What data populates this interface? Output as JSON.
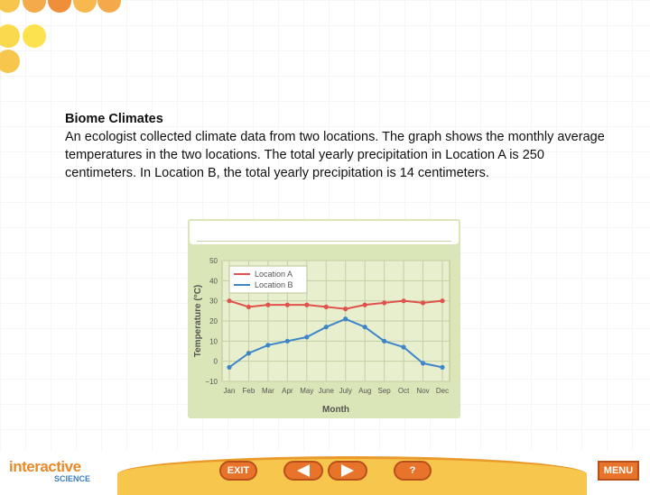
{
  "slide": {
    "title": "Biome Climates",
    "paragraph": "An ecologist collected climate data from two locations. The graph shows the monthly average temperatures in the two locations. The total yearly precipitation in Location A is 250 centimeters. In Location B, the total yearly precipitation is 14 centimeters."
  },
  "chart_data": {
    "type": "line",
    "x": [
      "Jan",
      "Feb",
      "Mar",
      "Apr",
      "May",
      "June",
      "July",
      "Aug",
      "Sep",
      "Oct",
      "Nov",
      "Dec"
    ],
    "series": [
      {
        "name": "Location A",
        "color": "#e0524b",
        "values": [
          30,
          27,
          28,
          28,
          28,
          27,
          26,
          28,
          29,
          30,
          29,
          30
        ]
      },
      {
        "name": "Location B",
        "color": "#3e86c7",
        "values": [
          -3,
          4,
          8,
          10,
          12,
          17,
          21,
          17,
          10,
          7,
          -1,
          -3
        ]
      }
    ],
    "xlabel": "Month",
    "ylabel": "Temperature (°C)",
    "ylim": [
      -10,
      50
    ],
    "yticks": [
      -10,
      0,
      10,
      20,
      30,
      40,
      50
    ],
    "ytick_labels": [
      "−10",
      "0",
      "10",
      "20",
      "30",
      "40",
      "50"
    ],
    "grid": true,
    "legend": "top-left"
  },
  "footer": {
    "logo_main": "interactive",
    "logo_sub": "SCIENCE",
    "exit_label": "EXIT",
    "help_label": "?",
    "menu_label": "MENU"
  },
  "colors": {
    "chart_background": "#dbe6b8",
    "nav_button": "#e8742b",
    "footer_band": "#f7c64d"
  }
}
